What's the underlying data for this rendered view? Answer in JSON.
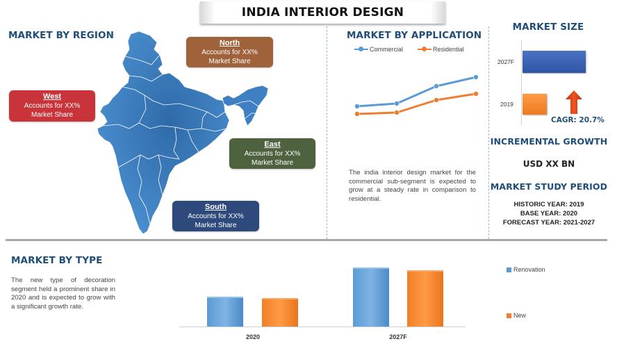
{
  "title": "INDIA INTERIOR DESIGN",
  "region": {
    "heading": "MARKET BY REGION",
    "boxes": [
      {
        "name": "North",
        "line1": "Accounts for XX%",
        "line2": "Market Share",
        "color": "#a0623a"
      },
      {
        "name": "West",
        "line1": "Accounts for XX%",
        "line2": "Market Share",
        "color": "#c0392b"
      },
      {
        "name": "East",
        "line1": "Accounts for XX%",
        "line2": "Market Share",
        "color": "#4f6240"
      },
      {
        "name": "South",
        "line1": "Accounts for XX%",
        "line2": "Market Share",
        "color": "#2e4a7d"
      }
    ],
    "map_color": "#3d7bbf"
  },
  "application": {
    "heading": "MARKET BY APPLICATION",
    "description": "The india interior design market for the commercial sub-segment is expected to grow at a steady rate in comparison to residential."
  },
  "market_size": {
    "heading": "MARKET SIZE",
    "cagr": "CAGR: 20.7%",
    "incremental_heading": "INCREMENTAL GROWTH",
    "incremental_value": "USD XX BN",
    "study_heading": "MARKET STUDY PERIOD",
    "historic": "HISTORIC YEAR: 2019",
    "base": "BASE YEAR: 2020",
    "forecast": "FORECAST YEAR: 2021-2027"
  },
  "type": {
    "heading": "MARKET BY TYPE",
    "description": "The new type of decoration segment held a prominent share in 2020 and is expected to grow with a significant growth rate."
  },
  "colors": {
    "heading": "#1f4e79",
    "blue": "#5b9bd5",
    "orange": "#ed7d31",
    "dark_blue": "#3a62b0",
    "arrow": "#e0471c"
  },
  "chart_data": [
    {
      "type": "line",
      "title": "MARKET BY APPLICATION",
      "x": [
        1,
        2,
        3,
        4
      ],
      "series": [
        {
          "name": "Commercial",
          "values": [
            42,
            46,
            71,
            84
          ],
          "color": "#5b9bd5"
        },
        {
          "name": "Residential",
          "values": [
            31,
            33,
            51,
            60
          ],
          "color": "#ed7d31"
        }
      ],
      "ylim": [
        0,
        100
      ],
      "legend": "top",
      "grid": false
    },
    {
      "type": "bar",
      "orientation": "horizontal",
      "title": "MARKET SIZE",
      "categories": [
        "2027F",
        "2019"
      ],
      "values": [
        100,
        38
      ],
      "colors": [
        "#3a62b0",
        "#ed7d31"
      ],
      "xlim": [
        0,
        100
      ]
    },
    {
      "type": "bar",
      "title": "MARKET BY TYPE",
      "categories": [
        "2020",
        "2027F"
      ],
      "series": [
        {
          "name": "Renovation",
          "values": [
            43,
            85
          ],
          "color": "#5b9bd5"
        },
        {
          "name": "New",
          "values": [
            41,
            81
          ],
          "color": "#ed7d31"
        }
      ],
      "ylim": [
        0,
        100
      ],
      "legend": "right"
    }
  ]
}
